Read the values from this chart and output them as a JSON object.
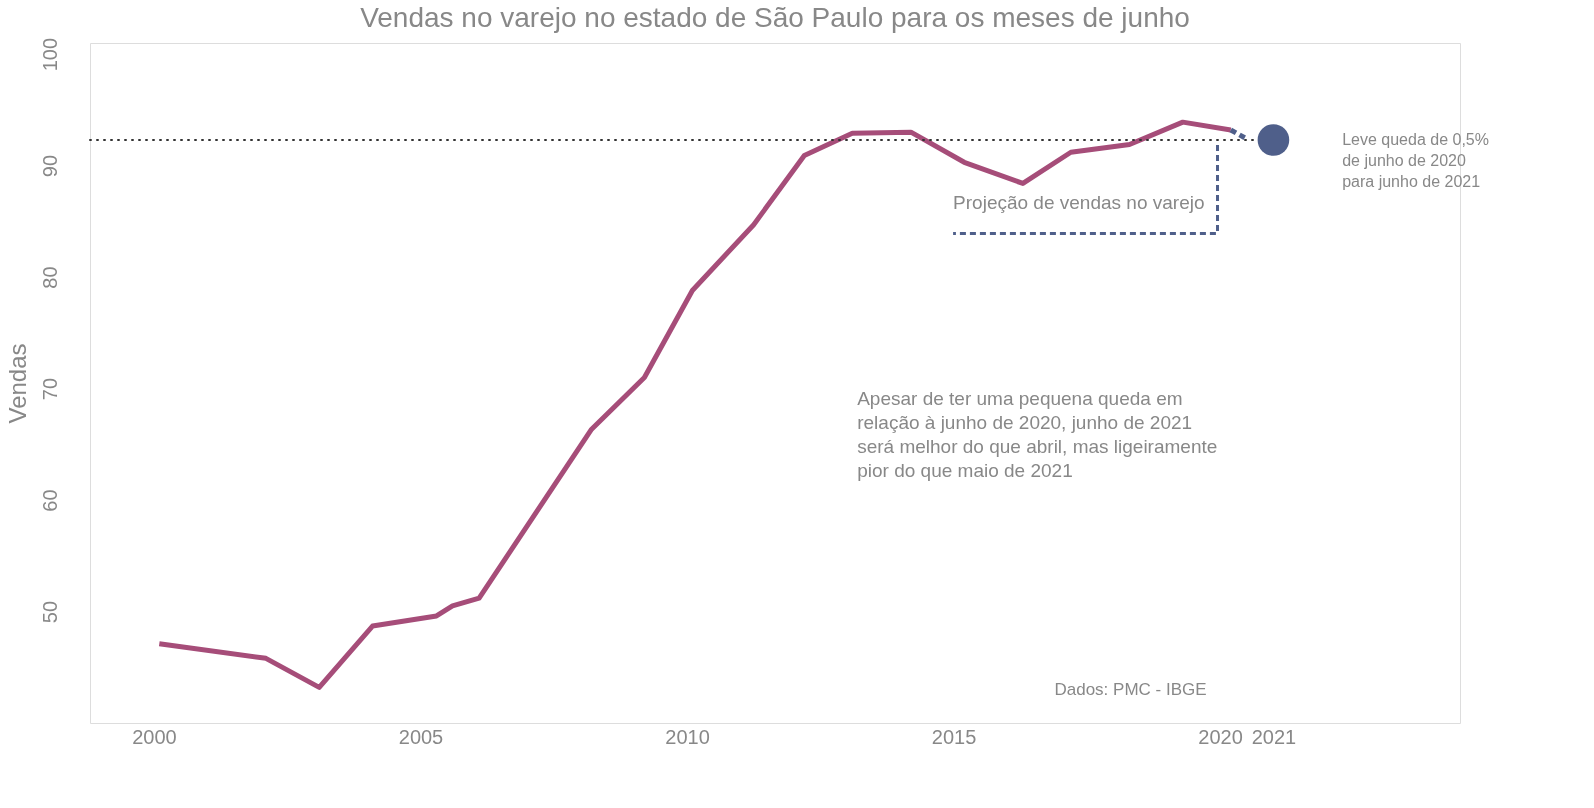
{
  "chart_data": {
    "type": "line",
    "title": "Vendas no varejo no estado de São Paulo para os meses de junho",
    "ylabel": "Vendas",
    "xlim": [
      1998.8,
      2024.5
    ],
    "xticks": [
      2000,
      2005,
      2010,
      2015,
      2020,
      2021
    ],
    "ylim": [
      40,
      101
    ],
    "yticks": [
      50,
      60,
      70,
      80,
      90,
      100
    ],
    "grid": false,
    "series": [
      {
        "color": "#a64d79",
        "line_style": "solid",
        "x": [
          2000.1,
          2002.1,
          2003.1,
          2004.1,
          2005.3,
          2005.6,
          2006.1,
          2008.2,
          2009.2,
          2010.1,
          2011.25,
          2012.2,
          2013.1,
          2014.2,
          2015.2,
          2016.3,
          2017.2,
          2018.3,
          2019.3,
          2020.2
        ],
        "values": [
          47.1,
          45.8,
          43.2,
          48.7,
          49.6,
          50.5,
          51.2,
          66.3,
          71.0,
          78.8,
          84.7,
          90.9,
          92.9,
          93.0,
          90.3,
          88.4,
          91.2,
          91.9,
          93.9,
          93.2
        ]
      },
      {
        "type": "line",
        "color": "#4f5f8a",
        "line_style": "dashed",
        "x": [
          2020.2,
          2020.5
        ],
        "values": [
          93.2,
          92.4
        ]
      },
      {
        "type": "scatter",
        "color": "#4f5f8a",
        "marker": "circle",
        "x": [
          2021
        ],
        "values": [
          92.3
        ]
      }
    ],
    "ref_lines": [
      {
        "axis": "y",
        "value": 92.3,
        "line_style": "dotted",
        "color": "#333333"
      }
    ],
    "annotations": [
      "Projeção de vendas no varejo",
      "Leve queda de 0,5%\nde junho de 2020\npara junho de 2021",
      "Apesar de ter uma pequena queda em\nrelação à junho de 2020, junho de 2021\nserá melhor do que abril, mas ligeiramente\npior do que maio de 2021",
      "Dados: PMC - IBGE"
    ]
  }
}
